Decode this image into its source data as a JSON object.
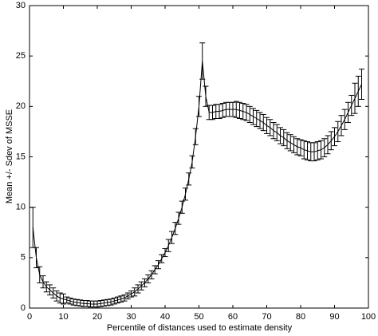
{
  "chart_data": {
    "type": "line",
    "xlabel": "Percentile of distances used to estimate density",
    "ylabel": "Mean +/- Sdev of MSSE",
    "x": [
      1,
      2,
      3,
      4,
      5,
      6,
      7,
      8,
      9,
      10,
      11,
      12,
      13,
      14,
      15,
      16,
      17,
      18,
      19,
      20,
      21,
      22,
      23,
      24,
      25,
      26,
      27,
      28,
      29,
      30,
      31,
      32,
      33,
      34,
      35,
      36,
      37,
      38,
      39,
      40,
      41,
      42,
      43,
      44,
      45,
      46,
      47,
      48,
      49,
      50,
      51,
      52,
      53,
      54,
      55,
      56,
      57,
      58,
      59,
      60,
      61,
      62,
      63,
      64,
      65,
      66,
      67,
      68,
      69,
      70,
      71,
      72,
      73,
      74,
      75,
      76,
      77,
      78,
      79,
      80,
      81,
      82,
      83,
      84,
      85,
      86,
      87,
      88,
      89,
      90,
      91,
      92,
      93,
      94,
      95,
      96,
      97,
      98
    ],
    "series": [
      {
        "color": "#000000",
        "values": [
          8,
          5,
          3.3,
          2.6,
          2.1,
          1.8,
          1.5,
          1.2,
          1.0,
          0.9,
          0.8,
          0.7,
          0.6,
          0.55,
          0.5,
          0.45,
          0.45,
          0.4,
          0.4,
          0.4,
          0.45,
          0.5,
          0.55,
          0.6,
          0.7,
          0.8,
          0.9,
          1.0,
          1.2,
          1.4,
          1.6,
          1.9,
          2.2,
          2.5,
          2.9,
          3.3,
          3.8,
          4.3,
          4.9,
          5.5,
          6.2,
          7.0,
          7.9,
          8.9,
          10.0,
          11.3,
          12.8,
          14.5,
          17,
          20,
          24.5,
          21,
          19.4,
          19.4,
          19.5,
          19.5,
          19.6,
          19.7,
          19.7,
          19.7,
          19.7,
          19.6,
          19.5,
          19.4,
          19.2,
          19.0,
          18.8,
          18.6,
          18.4,
          18.1,
          17.9,
          17.6,
          17.4,
          17.1,
          16.9,
          16.6,
          16.4,
          16.2,
          16.0,
          15.9,
          15.7,
          15.6,
          15.5,
          15.5,
          15.6,
          15.7,
          15.9,
          16.2,
          16.6,
          17.0,
          17.5,
          18.1,
          18.7,
          19.4,
          20.1,
          20.8,
          21.5,
          22.2
        ],
        "errors": [
          2,
          1,
          0.8,
          0.6,
          0.5,
          0.5,
          0.5,
          0.5,
          0.5,
          0.5,
          0.3,
          0.3,
          0.3,
          0.3,
          0.3,
          0.3,
          0.3,
          0.3,
          0.3,
          0.3,
          0.3,
          0.3,
          0.3,
          0.3,
          0.3,
          0.3,
          0.3,
          0.3,
          0.3,
          0.3,
          0.4,
          0.4,
          0.4,
          0.4,
          0.4,
          0.4,
          0.4,
          0.4,
          0.4,
          0.4,
          0.6,
          0.6,
          0.6,
          0.6,
          0.6,
          0.6,
          0.6,
          0.6,
          0.8,
          1,
          1.8,
          1.0,
          0.7,
          0.7,
          0.7,
          0.7,
          0.7,
          0.7,
          0.7,
          0.7,
          0.8,
          0.8,
          0.8,
          0.8,
          0.8,
          0.8,
          0.8,
          0.8,
          0.8,
          0.8,
          0.8,
          0.8,
          0.8,
          0.8,
          0.8,
          0.8,
          0.8,
          0.8,
          0.8,
          0.8,
          0.9,
          0.9,
          0.9,
          0.9,
          0.9,
          0.9,
          0.9,
          0.9,
          0.9,
          0.9,
          1.0,
          1.0,
          1.0,
          1.0,
          1.0,
          1.5,
          1.5,
          1.5
        ]
      }
    ],
    "xlim": [
      0,
      100
    ],
    "xticks": [
      0,
      10,
      20,
      30,
      40,
      50,
      60,
      70,
      80,
      90,
      100
    ],
    "ylim": [
      0,
      30
    ],
    "yticks": [
      0,
      5,
      10,
      15,
      20,
      25,
      30
    ]
  }
}
